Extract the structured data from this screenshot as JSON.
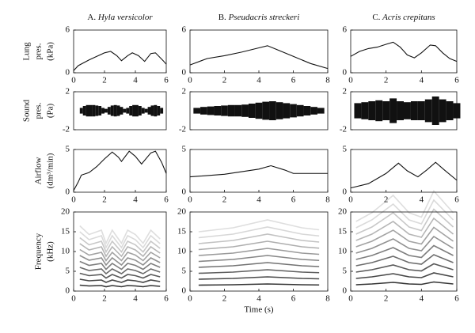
{
  "chart_data": [
    {
      "type": "line",
      "panel_label": "A.",
      "title": "Hyla versicolor",
      "ylabel": [
        "Lung",
        "pres.",
        "(kPa)"
      ],
      "x": [
        0,
        0.3,
        1,
        1.5,
        2,
        2.4,
        2.8,
        3.1,
        3.5,
        3.8,
        4.2,
        4.6,
        5,
        5.3,
        5.8,
        6
      ],
      "values": [
        0.3,
        1,
        1.8,
        2.3,
        2.8,
        3.0,
        2.4,
        1.7,
        2.4,
        2.8,
        2.4,
        1.6,
        2.7,
        2.8,
        1.7,
        1.2
      ],
      "xlim": [
        0,
        6
      ],
      "xticks": [
        0,
        2,
        4,
        6
      ],
      "ylim": [
        0,
        6
      ],
      "yticks": [
        0,
        6
      ],
      "color": "#111111"
    },
    {
      "type": "line",
      "panel_label": "B.",
      "title": "Pseudacris streckeri",
      "x": [
        0,
        1,
        2,
        3,
        4,
        4.5,
        5,
        6,
        7,
        8
      ],
      "values": [
        1.1,
        2.0,
        2.4,
        2.9,
        3.5,
        3.8,
        3.3,
        2.3,
        1.3,
        0.6
      ],
      "xlim": [
        0,
        8
      ],
      "xticks": [
        0,
        2,
        4,
        6,
        8
      ],
      "ylim": [
        0,
        6
      ],
      "yticks": [
        0,
        6
      ],
      "color": "#111111"
    },
    {
      "type": "line",
      "panel_label": "C.",
      "title": "Acris crepitans",
      "x": [
        0,
        0.5,
        1,
        1.5,
        2,
        2.4,
        2.8,
        3.2,
        3.6,
        4,
        4.5,
        4.8,
        5.2,
        5.6,
        6
      ],
      "values": [
        2.3,
        3.0,
        3.4,
        3.6,
        4.0,
        4.3,
        3.6,
        2.5,
        2.1,
        2.8,
        3.9,
        3.8,
        2.8,
        2.0,
        1.6
      ],
      "xlim": [
        0,
        6
      ],
      "xticks": [
        0,
        2,
        4,
        6
      ],
      "ylim": [
        0,
        6
      ],
      "yticks": [
        0,
        6
      ],
      "color": "#111111"
    },
    {
      "type": "sound",
      "ylabel": [
        "Sound",
        "pres.",
        "(Pa)"
      ],
      "x": [
        0.4,
        0.6,
        0.8,
        1.0,
        1.2,
        1.4,
        1.6,
        1.8,
        2.0,
        2.2,
        2.4,
        2.6,
        2.8,
        3.0,
        3.2,
        3.4,
        3.6,
        3.8,
        4.0,
        4.2,
        4.4,
        4.6,
        4.8,
        5.0,
        5.2,
        5.4,
        5.6
      ],
      "values": [
        0.3,
        0.5,
        0.6,
        0.6,
        0.6,
        0.55,
        0.5,
        0.3,
        0.2,
        0.4,
        0.55,
        0.6,
        0.55,
        0.4,
        0.2,
        0.3,
        0.5,
        0.6,
        0.6,
        0.5,
        0.3,
        0.2,
        0.4,
        0.55,
        0.6,
        0.5,
        0.3
      ],
      "xlim": [
        0,
        6
      ],
      "ylim": [
        -2,
        2
      ],
      "yticks": [
        -2,
        2
      ],
      "color": "#111111"
    },
    {
      "type": "sound",
      "x": [
        0.2,
        0.6,
        1.0,
        1.4,
        1.8,
        2.2,
        2.6,
        3.0,
        3.4,
        3.8,
        4.2,
        4.6,
        5.0,
        5.4,
        5.8,
        6.2,
        6.6,
        7.0,
        7.4
      ],
      "values": [
        0.3,
        0.4,
        0.45,
        0.5,
        0.55,
        0.6,
        0.6,
        0.65,
        0.75,
        0.85,
        0.95,
        1.0,
        0.9,
        0.8,
        0.7,
        0.6,
        0.5,
        0.4,
        0.3
      ],
      "xlim": [
        0,
        8
      ],
      "ylim": [
        -2,
        2
      ],
      "yticks": [
        -2,
        2
      ],
      "color": "#111111"
    },
    {
      "type": "sound",
      "x": [
        0.2,
        0.6,
        1.0,
        1.4,
        1.8,
        2.2,
        2.6,
        3.0,
        3.4,
        3.8,
        4.2,
        4.6,
        5.0,
        5.4,
        5.8
      ],
      "values": [
        0.8,
        0.9,
        1.0,
        1.1,
        1.0,
        1.3,
        1.0,
        0.9,
        1.0,
        1.0,
        1.2,
        1.5,
        1.2,
        1.0,
        0.8
      ],
      "xlim": [
        0,
        6
      ],
      "ylim": [
        -2,
        2
      ],
      "yticks": [
        -2,
        2
      ],
      "color": "#111111"
    },
    {
      "type": "line",
      "ylabel": [
        "Airflow",
        "(dm³/min)"
      ],
      "x": [
        0,
        0.3,
        0.5,
        1,
        1.5,
        2,
        2.5,
        2.9,
        3.1,
        3.6,
        4,
        4.4,
        5,
        5.3,
        5.7,
        6
      ],
      "values": [
        0.2,
        1.2,
        2.0,
        2.3,
        3.0,
        3.9,
        4.7,
        4.1,
        3.6,
        4.8,
        4.2,
        3.3,
        4.6,
        4.8,
        3.5,
        2.2
      ],
      "xlim": [
        0,
        6
      ],
      "xticks": [
        0,
        2,
        4,
        6
      ],
      "ylim": [
        0,
        5
      ],
      "yticks": [
        0,
        5
      ],
      "color": "#111111"
    },
    {
      "type": "line",
      "x": [
        0,
        2,
        4,
        4.7,
        5.5,
        6,
        8
      ],
      "values": [
        1.8,
        2.1,
        2.7,
        3.1,
        2.6,
        2.2,
        2.2
      ],
      "xlim": [
        0,
        8
      ],
      "xticks": [
        0,
        2,
        4,
        6,
        8
      ],
      "ylim": [
        0,
        5
      ],
      "yticks": [
        0,
        5
      ],
      "color": "#111111"
    },
    {
      "type": "line",
      "x": [
        0,
        1,
        2,
        2.7,
        3.2,
        3.8,
        4.3,
        4.8,
        5.3,
        6
      ],
      "values": [
        0.5,
        1.0,
        2.2,
        3.4,
        2.5,
        1.8,
        2.6,
        3.5,
        2.6,
        1.4
      ],
      "xlim": [
        0,
        6
      ],
      "xticks": [
        0,
        2,
        4,
        6
      ],
      "ylim": [
        0,
        5
      ],
      "yticks": [
        0,
        5
      ],
      "color": "#111111"
    },
    {
      "type": "spectrogram",
      "ylabel": [
        "Frequency",
        "(kHz)"
      ],
      "x": [
        0.4,
        1,
        1.8,
        2.1,
        2.5,
        3.1,
        3.5,
        4,
        4.5,
        5,
        5.6
      ],
      "values": [
        1.5,
        1.3,
        1.4,
        1.1,
        1.4,
        1.1,
        1.4,
        1.3,
        1.1,
        1.4,
        1.2
      ],
      "harmonics": 11,
      "xlim": [
        0,
        6
      ],
      "xticks": [
        0,
        2,
        4,
        6
      ],
      "ylim": [
        0,
        20
      ],
      "yticks": [
        0,
        5,
        10,
        15,
        20
      ],
      "color": "#222222"
    },
    {
      "type": "spectrogram",
      "xlabel": "Time (s)",
      "x": [
        0.5,
        1.5,
        2.5,
        3.5,
        4.5,
        5.5,
        6.5,
        7.5
      ],
      "values": [
        1.5,
        1.55,
        1.6,
        1.7,
        1.8,
        1.7,
        1.6,
        1.55
      ],
      "harmonics": 10,
      "xlim": [
        0,
        8
      ],
      "xticks": [
        0,
        2,
        4,
        6,
        8
      ],
      "ylim": [
        0,
        20
      ],
      "yticks": [
        0,
        5,
        10,
        15,
        20
      ],
      "color": "#222222"
    },
    {
      "type": "spectrogram",
      "x": [
        0.3,
        1.2,
        2.4,
        3.3,
        4.0,
        4.7,
        5.8
      ],
      "values": [
        1.6,
        1.8,
        2.2,
        1.8,
        1.7,
        2.3,
        1.8
      ],
      "harmonics": 11,
      "xlim": [
        0,
        6
      ],
      "xticks": [
        0,
        2,
        4,
        6
      ],
      "ylim": [
        0,
        20
      ],
      "yticks": [
        0,
        5,
        10,
        15,
        20
      ],
      "color": "#222222"
    }
  ]
}
